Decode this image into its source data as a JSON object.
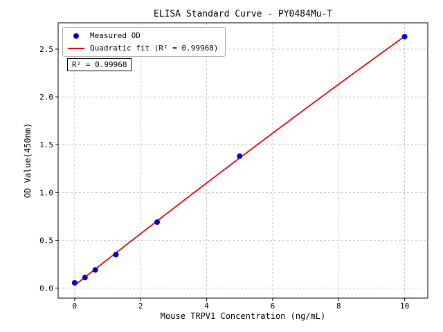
{
  "chart_data": {
    "type": "scatter",
    "title": "ELISA Standard Curve - PY0484Mu-T",
    "xlabel": "Mouse TRPV1 Concentration (ng/mL)",
    "ylabel": "OD Value(450nm)",
    "xlim": [
      -0.5,
      10.7
    ],
    "ylim": [
      -0.105,
      2.775
    ],
    "xticks": [
      0,
      2,
      4,
      6,
      8,
      10
    ],
    "xtick_labels": [
      "0",
      "2",
      "4",
      "6",
      "8",
      "10"
    ],
    "yticks": [
      0.0,
      0.5,
      1.0,
      1.5,
      2.0,
      2.5
    ],
    "ytick_labels": [
      "0.0",
      "0.5",
      "1.0",
      "1.5",
      "2.0",
      "2.5"
    ],
    "grid": true,
    "legend_position": "upper-left",
    "series": [
      {
        "name": "Measured OD",
        "type": "scatter",
        "color": "#0000cd",
        "x": [
          0,
          0.313,
          0.625,
          1.25,
          2.5,
          5,
          10
        ],
        "y": [
          0.055,
          0.11,
          0.19,
          0.35,
          0.69,
          1.38,
          2.63
        ]
      },
      {
        "name": "Quadratic fit (R² = 0.99968)",
        "type": "line",
        "color": "#e60000",
        "fit": "quadratic",
        "x_range": [
          0,
          10
        ],
        "r_squared": 0.99968
      }
    ],
    "annotation": "R² = 0.99968",
    "colors": {
      "grid": "#b5b5b5",
      "axes": "#000000",
      "background": "#ffffff"
    }
  }
}
